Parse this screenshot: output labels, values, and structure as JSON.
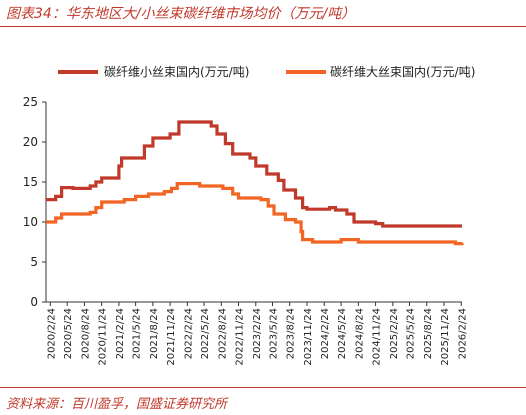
{
  "header": {
    "title": "图表34：华东地区大/小丝束碳纤维市场均价（万元/吨）"
  },
  "footer": {
    "source": "资料来源：百川盈孚，国盛证券研究所"
  },
  "colors": {
    "series_small": "#c0392b",
    "series_large": "#f26522",
    "accent": "#c0392b"
  },
  "chart_data": {
    "type": "line",
    "step": true,
    "title": "",
    "xlabel": "",
    "ylabel": "",
    "ylim": [
      0,
      25
    ],
    "yticks": [
      0,
      5,
      10,
      15,
      20,
      25
    ],
    "grid": false,
    "legend_position": "top",
    "x_range": [
      "2020/2/1",
      "2026/2/28"
    ],
    "x_tick_labels": [
      "2020/2/24",
      "2020/5/24",
      "2020/8/24",
      "2020/11/24",
      "2021/2/24",
      "2021/5/24",
      "2021/8/24",
      "2021/11/24",
      "2022/2/24",
      "2022/5/24",
      "2022/8/24",
      "2022/11/24",
      "2023/2/24",
      "2023/5/24",
      "2023/8/24",
      "2023/11/24",
      "2024/2/24",
      "2024/5/24",
      "2024/8/24",
      "2024/11/24",
      "2025/2/24",
      "2025/5/24",
      "2025/8/24",
      "2025/11/24",
      "2026/2/24"
    ],
    "series": [
      {
        "name": "碳纤维小丝束国内(万元/吨)",
        "points": [
          [
            "2020/2/1",
            12.8
          ],
          [
            "2020/3/24",
            13.2
          ],
          [
            "2020/4/24",
            14.3
          ],
          [
            "2020/6/24",
            14.2
          ],
          [
            "2020/9/24",
            14.5
          ],
          [
            "2020/10/24",
            15.0
          ],
          [
            "2020/11/24",
            15.5
          ],
          [
            "2021/2/24",
            17.0
          ],
          [
            "2021/3/10",
            18.0
          ],
          [
            "2021/6/24",
            18.0
          ],
          [
            "2021/7/10",
            19.5
          ],
          [
            "2021/8/24",
            20.5
          ],
          [
            "2021/10/24",
            20.5
          ],
          [
            "2021/11/24",
            21.0
          ],
          [
            "2022/1/10",
            22.5
          ],
          [
            "2022/6/10",
            22.5
          ],
          [
            "2022/7/1",
            22.0
          ],
          [
            "2022/8/1",
            21.0
          ],
          [
            "2022/9/15",
            19.8
          ],
          [
            "2022/10/24",
            18.5
          ],
          [
            "2023/1/24",
            18.0
          ],
          [
            "2023/2/24",
            17.0
          ],
          [
            "2023/4/24",
            16.0
          ],
          [
            "2023/6/24",
            15.2
          ],
          [
            "2023/7/24",
            14.0
          ],
          [
            "2023/9/24",
            13.0
          ],
          [
            "2023/11/1",
            11.8
          ],
          [
            "2023/11/24",
            11.6
          ],
          [
            "2024/3/24",
            11.8
          ],
          [
            "2024/4/24",
            11.5
          ],
          [
            "2024/6/24",
            11.0
          ],
          [
            "2024/8/1",
            10.0
          ],
          [
            "2024/11/24",
            9.8
          ],
          [
            "2025/1/1",
            9.5
          ],
          [
            "2026/2/28",
            9.5
          ]
        ]
      },
      {
        "name": "碳纤维大丝束国内(万元/吨)",
        "points": [
          [
            "2020/2/1",
            10.0
          ],
          [
            "2020/3/24",
            10.5
          ],
          [
            "2020/4/24",
            11.0
          ],
          [
            "2020/9/24",
            11.2
          ],
          [
            "2020/10/24",
            11.8
          ],
          [
            "2020/11/24",
            12.5
          ],
          [
            "2021/3/24",
            12.8
          ],
          [
            "2021/5/24",
            13.2
          ],
          [
            "2021/8/1",
            13.5
          ],
          [
            "2021/10/24",
            13.8
          ],
          [
            "2021/12/1",
            14.2
          ],
          [
            "2022/1/1",
            14.8
          ],
          [
            "2022/5/1",
            14.5
          ],
          [
            "2022/9/1",
            14.2
          ],
          [
            "2022/10/24",
            13.5
          ],
          [
            "2022/11/24",
            13.0
          ],
          [
            "2023/3/24",
            12.8
          ],
          [
            "2023/5/1",
            12.0
          ],
          [
            "2023/6/1",
            11.0
          ],
          [
            "2023/8/1",
            10.3
          ],
          [
            "2023/9/24",
            10.0
          ],
          [
            "2023/10/24",
            8.8
          ],
          [
            "2023/11/1",
            7.8
          ],
          [
            "2023/12/24",
            7.5
          ],
          [
            "2024/5/24",
            7.8
          ],
          [
            "2024/8/24",
            7.5
          ],
          [
            "2026/1/24",
            7.3
          ],
          [
            "2026/2/28",
            7.4
          ]
        ]
      }
    ]
  }
}
